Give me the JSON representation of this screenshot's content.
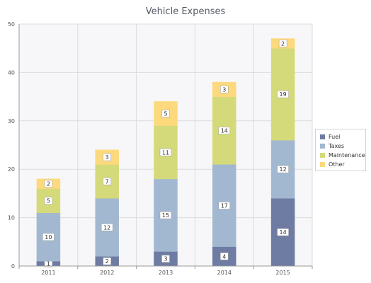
{
  "chart_data": {
    "type": "bar",
    "stacked": true,
    "title": "Vehicle Expenses",
    "xlabel": "",
    "ylabel": "",
    "categories": [
      "2011",
      "2012",
      "2013",
      "2014",
      "2015"
    ],
    "ylim": [
      0,
      50
    ],
    "yticks": [
      "0",
      "10",
      "20",
      "30",
      "40",
      "50"
    ],
    "grid": true,
    "legend_position": "right",
    "series": [
      {
        "name": "Fuel",
        "color": "#6e7ba3",
        "values": [
          1,
          2,
          3,
          4,
          14
        ]
      },
      {
        "name": "Taxes",
        "color": "#a2b8d0",
        "values": [
          10,
          12,
          15,
          17,
          12
        ]
      },
      {
        "name": "Maintenance",
        "color": "#d4da7a",
        "values": [
          5,
          7,
          11,
          14,
          19
        ]
      },
      {
        "name": "Other",
        "color": "#fcd97c",
        "values": [
          2,
          3,
          5,
          3,
          2
        ]
      }
    ]
  }
}
